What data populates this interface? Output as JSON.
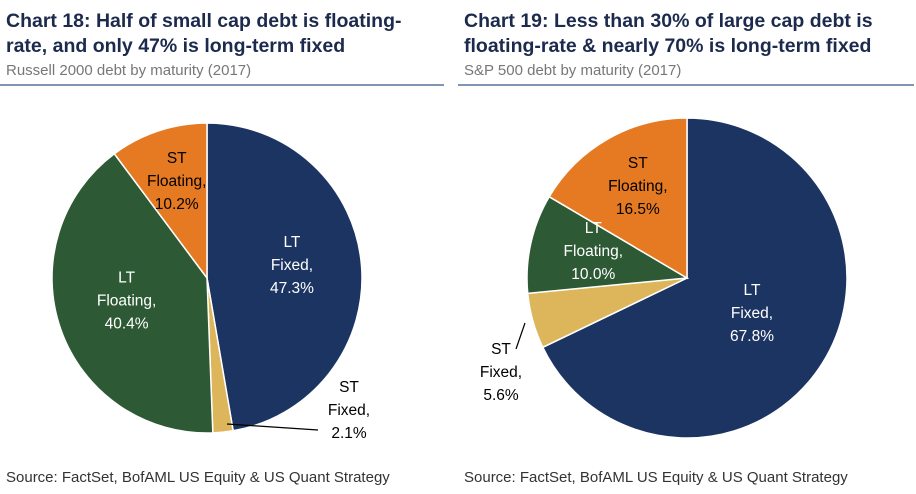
{
  "chart_data": [
    {
      "type": "pie",
      "title": "Chart 18: Half of small cap debt is floating-rate, and only 47% is long-term fixed",
      "title_lines": [
        "Chart 18: Half of small cap debt is floating-",
        "rate, and only 47% is long-term fixed"
      ],
      "subtitle": "Russell 2000 debt by maturity (2017)",
      "source": "Source: FactSet, BofAML US Equity & US Quant Strategy",
      "slices": [
        {
          "name": "LT Fixed",
          "value": 47.3,
          "label_lines": [
            "LT",
            "Fixed,",
            "47.3%"
          ],
          "color": "#1c3461",
          "text_color": "#ffffff"
        },
        {
          "name": "ST Fixed",
          "value": 2.1,
          "label_lines": [
            "ST",
            "Fixed,",
            "2.1%"
          ],
          "color": "#ddb55a",
          "text_color": "#000000"
        },
        {
          "name": "LT Floating",
          "value": 40.4,
          "label_lines": [
            "LT",
            "Floating,",
            "40.4%"
          ],
          "color": "#2d5a35",
          "text_color": "#ffffff"
        },
        {
          "name": "ST Floating",
          "value": 10.2,
          "label_lines": [
            "ST",
            "Floating,",
            "10.2%"
          ],
          "color": "#e57a23",
          "text_color": "#000000"
        }
      ]
    },
    {
      "type": "pie",
      "title": "Chart 19: Less than 30% of large cap debt is floating-rate & nearly 70% is long-term fixed",
      "title_lines": [
        "Chart 19: Less than 30% of large cap debt is",
        "floating-rate & nearly 70% is long-term fixed"
      ],
      "subtitle": "S&P 500 debt by maturity (2017)",
      "source": "Source: FactSet, BofAML US Equity & US Quant Strategy",
      "slices": [
        {
          "name": "LT Fixed",
          "value": 67.8,
          "label_lines": [
            "LT",
            "Fixed,",
            "67.8%"
          ],
          "color": "#1c3461",
          "text_color": "#ffffff"
        },
        {
          "name": "ST Fixed",
          "value": 5.6,
          "label_lines": [
            "ST",
            "Fixed,",
            "5.6%"
          ],
          "color": "#ddb55a",
          "text_color": "#000000"
        },
        {
          "name": "LT Floating",
          "value": 10.0,
          "label_lines": [
            "LT",
            "Floating,",
            "10.0%"
          ],
          "color": "#2d5a35",
          "text_color": "#ffffff"
        },
        {
          "name": "ST Floating",
          "value": 16.5,
          "label_lines": [
            "ST",
            "Floating,",
            "16.5%"
          ],
          "color": "#e57a23",
          "text_color": "#000000"
        }
      ]
    }
  ]
}
